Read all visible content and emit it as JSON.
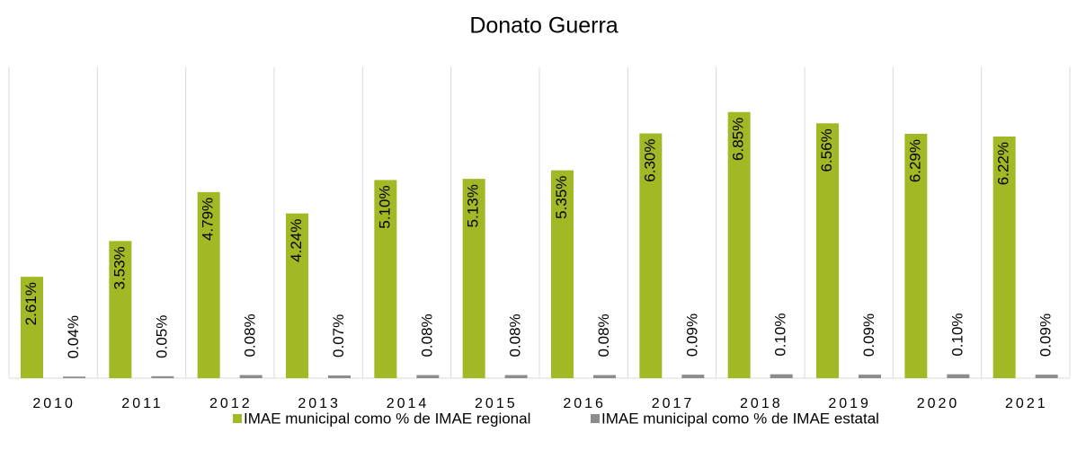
{
  "chart_data": {
    "type": "bar",
    "title": "Donato Guerra",
    "categories": [
      "2010",
      "2011",
      "2012",
      "2013",
      "2014",
      "2015",
      "2016",
      "2017",
      "2018",
      "2019",
      "2020",
      "2021"
    ],
    "series": [
      {
        "name": "IMAE municipal como % de IMAE regional",
        "color": "#a3b825",
        "values": [
          2.61,
          3.53,
          4.79,
          4.24,
          5.1,
          5.13,
          5.35,
          6.3,
          6.85,
          6.56,
          6.29,
          6.22
        ],
        "value_labels": [
          "2.61%",
          "3.53%",
          "4.79%",
          "4.24%",
          "5.10%",
          "5.13%",
          "5.35%",
          "6.30%",
          "6.85%",
          "6.56%",
          "6.29%",
          "6.22%"
        ]
      },
      {
        "name": "IMAE municipal como % de IMAE estatal",
        "color": "#8c8c8c",
        "values": [
          0.04,
          0.05,
          0.08,
          0.07,
          0.08,
          0.08,
          0.08,
          0.09,
          0.1,
          0.09,
          0.1,
          0.09
        ],
        "value_labels": [
          "0.04%",
          "0.05%",
          "0.08%",
          "0.07%",
          "0.08%",
          "0.08%",
          "0.08%",
          "0.09%",
          "0.10%",
          "0.09%",
          "0.10%",
          "0.09%"
        ]
      }
    ],
    "ylim": [
      0,
      8
    ],
    "legend": "bottom"
  }
}
